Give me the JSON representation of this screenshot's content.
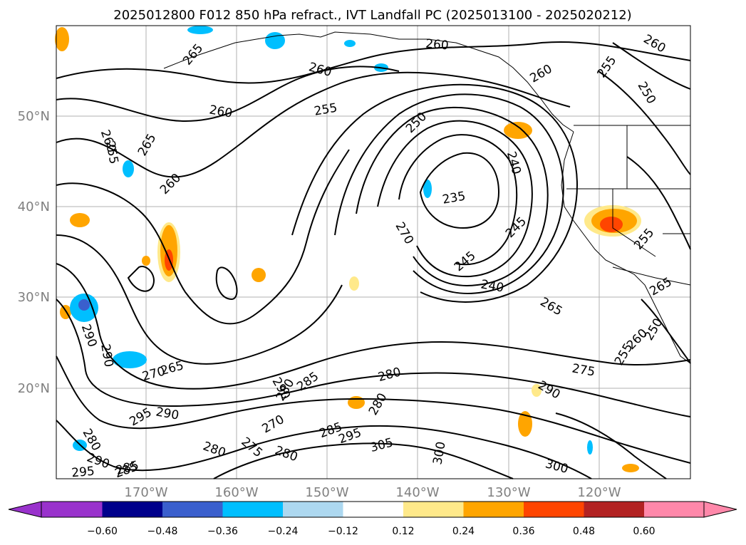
{
  "title": "2025012800 F012 850 hPa refract., IVT Landfall PC (2025013100 - 2025020212)",
  "map": {
    "lat_labels": [
      "50°N",
      "40°N",
      "30°N",
      "20°N"
    ],
    "lon_labels": [
      "170°W",
      "160°W",
      "150°W",
      "140°W",
      "130°W",
      "120°W"
    ],
    "contour_labels": [
      "265",
      "260",
      "260",
      "260",
      "255",
      "265",
      "260",
      "260",
      "255",
      "250",
      "240",
      "235",
      "260",
      "255",
      "250",
      "260",
      "245",
      "270",
      "245",
      "240",
      "265",
      "255",
      "255",
      "265",
      "260",
      "250",
      "275",
      "280",
      "280",
      "270",
      "265",
      "290",
      "290",
      "295",
      "290",
      "285",
      "270",
      "280",
      "275",
      "280",
      "285",
      "285",
      "290",
      "295",
      "280",
      "280",
      "305",
      "300",
      "300",
      "290",
      "295",
      "285",
      "290"
    ]
  },
  "colorbar": {
    "ticks": [
      "−0.60",
      "−0.48",
      "−0.36",
      "−0.24",
      "−0.12",
      "0.12",
      "0.24",
      "0.36",
      "0.48",
      "0.60"
    ],
    "colors": [
      "#9932cc",
      "#00008b",
      "#3a5fcd",
      "#00bfff",
      "#add8f0",
      "#ffffff",
      "#ffe98a",
      "#ffa500",
      "#ff4500",
      "#b22222",
      "#ff88aa"
    ],
    "extend": "both"
  }
}
